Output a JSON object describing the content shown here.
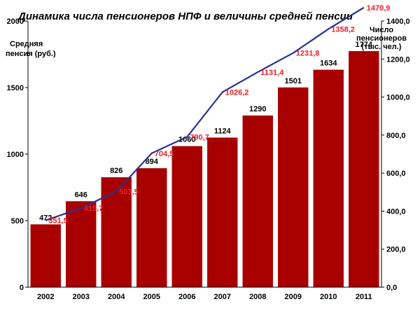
{
  "chart_data": {
    "type": "bar",
    "title": "Динамика числа пенсионеров НПФ и величины средней пенсии",
    "categories": [
      "2002",
      "2003",
      "2004",
      "2005",
      "2006",
      "2007",
      "2008",
      "2009",
      "2010",
      "2011"
    ],
    "ylabel_left": [
      "Средняя",
      "пенсия (руб.)"
    ],
    "ylabel_right": [
      "Число",
      "пенсионеров",
      "(тыс. чел.)"
    ],
    "y_left_lim": [
      0,
      2000
    ],
    "y_left_ticks": [
      "0",
      "500",
      "1000",
      "1500",
      "2000"
    ],
    "y_right_lim": [
      0,
      1400
    ],
    "y_right_ticks": [
      "0,0",
      "200,0",
      "400,0",
      "600,0",
      "800,0",
      "1000,0",
      "1200,0",
      "1400,0"
    ],
    "series": [
      {
        "type": "bar",
        "axis": "left",
        "values": [
          472,
          646,
          826,
          894,
          1060,
          1124,
          1290,
          1501,
          1634,
          1774
        ],
        "labels": [
          "472",
          "646",
          "826",
          "894",
          "1060",
          "1124",
          "1290",
          "1501",
          "1634",
          "1774"
        ]
      },
      {
        "type": "line",
        "axis": "right",
        "values": [
          351.5,
          415.7,
          503.5,
          704.5,
          790.7,
          1026.2,
          1131.4,
          1231.8,
          1358.2,
          1470.9
        ],
        "labels": [
          "351,5",
          "415,7",
          "503,5",
          "704,5",
          "790,7",
          "1026,2",
          "1131,4",
          "1231,8",
          "1358,2",
          "1470,9"
        ]
      }
    ],
    "grid": false,
    "legend": "none"
  },
  "colors": {
    "bar": "#a80000",
    "line": "#2b2f8f",
    "line_label": "#e8202a",
    "axis": "#000000"
  }
}
